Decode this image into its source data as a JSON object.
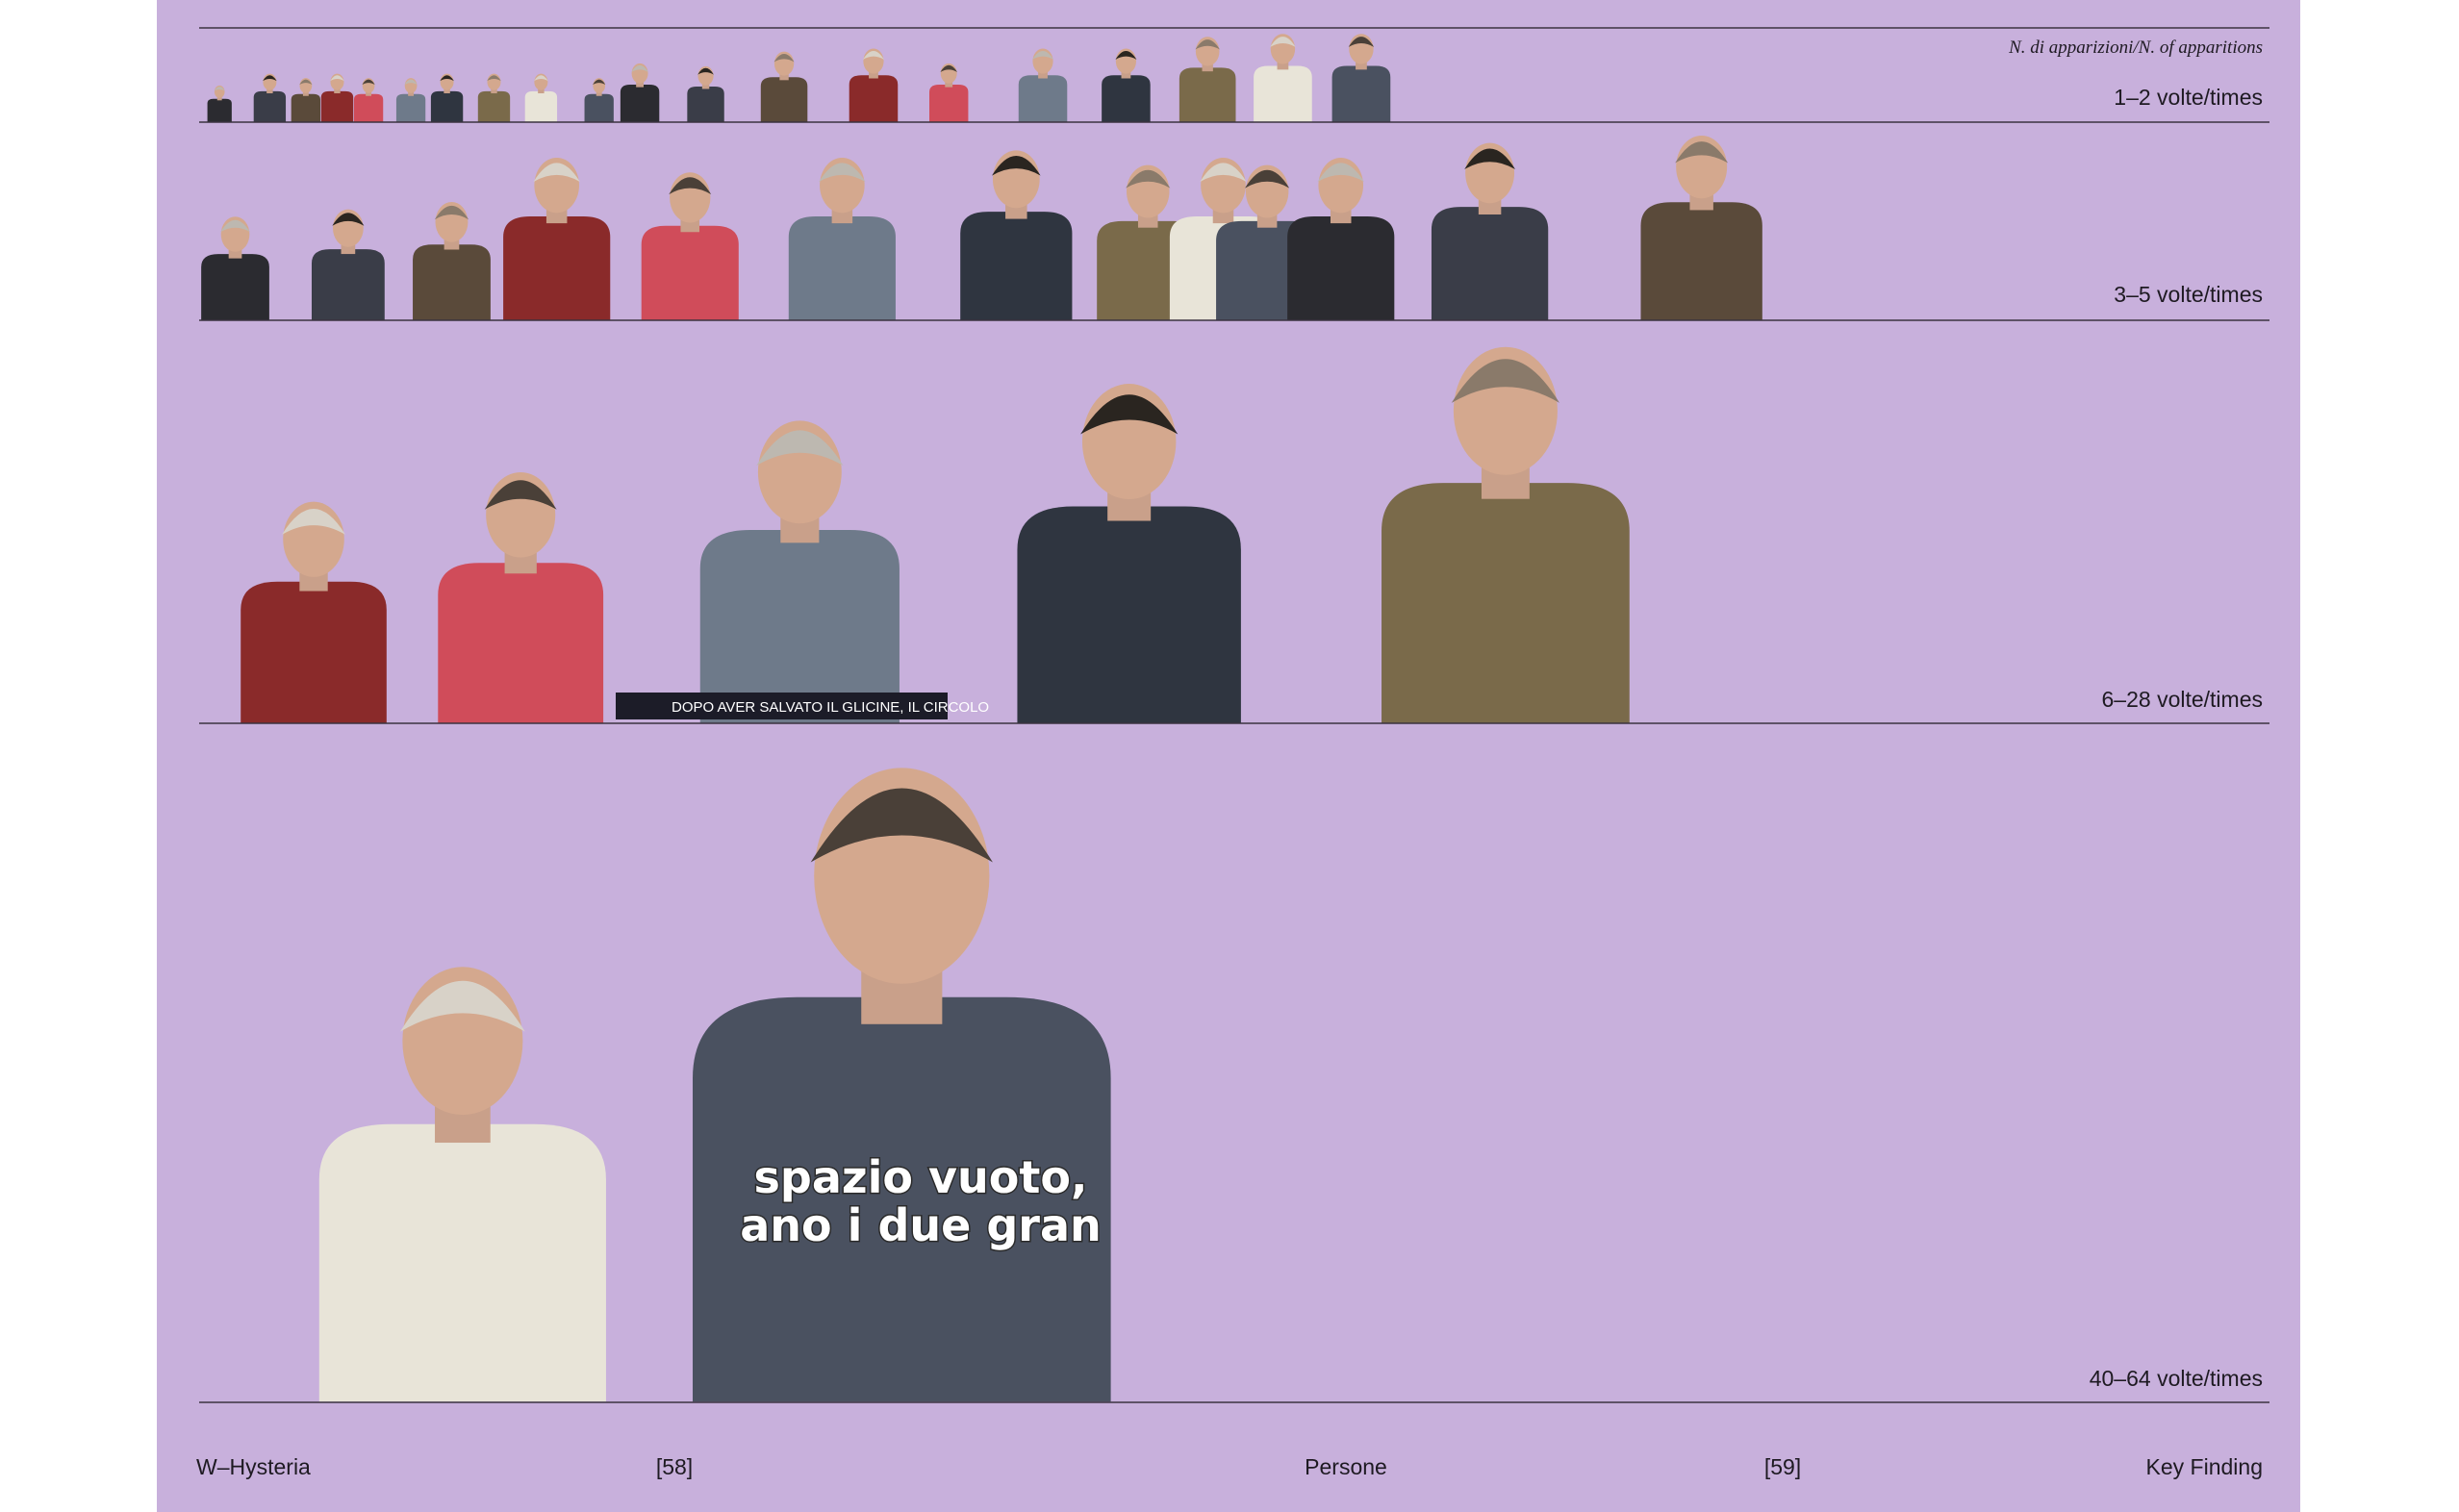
{
  "header": {
    "note": "N. di apparizioni/N. of apparitions"
  },
  "rows": [
    {
      "label": "1–2 volte/times"
    },
    {
      "label": "3–5 volte/times"
    },
    {
      "label": "6–28 volte/times"
    },
    {
      "label": "40–64 volte/times"
    }
  ],
  "photo_texts": {
    "banner": "DOPO AVER SALVATO IL GLICINE, IL CIRCOLO",
    "subtitle": [
      "spazio vuoto,",
      "ano i due gran"
    ]
  },
  "footer": {
    "left": "W–Hysteria",
    "page_left": "[58]",
    "section": "Persone",
    "page_right": "[59]",
    "right": "Key Finding"
  }
}
